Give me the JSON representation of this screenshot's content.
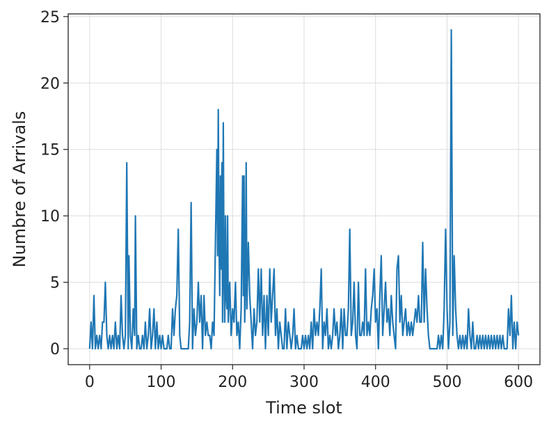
{
  "chart_data": {
    "type": "line",
    "title": "",
    "xlabel": "Time slot",
    "ylabel": "Numbre of Arrivals",
    "xlim": [
      -30,
      630
    ],
    "ylim": [
      -1.2,
      25.2
    ],
    "xticks": [
      0,
      100,
      200,
      300,
      400,
      500,
      600
    ],
    "yticks": [
      0,
      5,
      10,
      15,
      20,
      25
    ],
    "grid": true,
    "legend": "none",
    "line_color": "#1f77b4",
    "series": [
      {
        "points": [
          [
            0,
            0
          ],
          [
            2,
            2
          ],
          [
            4,
            0
          ],
          [
            6,
            4
          ],
          [
            8,
            0
          ],
          [
            10,
            1
          ],
          [
            12,
            0
          ],
          [
            14,
            1
          ],
          [
            16,
            0
          ],
          [
            18,
            2
          ],
          [
            20,
            2
          ],
          [
            22,
            5
          ],
          [
            24,
            1
          ],
          [
            26,
            0
          ],
          [
            28,
            1
          ],
          [
            30,
            0
          ],
          [
            32,
            1
          ],
          [
            34,
            0
          ],
          [
            36,
            2
          ],
          [
            38,
            0
          ],
          [
            40,
            1
          ],
          [
            42,
            0
          ],
          [
            44,
            4
          ],
          [
            46,
            1
          ],
          [
            48,
            0
          ],
          [
            50,
            1
          ],
          [
            52,
            14
          ],
          [
            54,
            0
          ],
          [
            55,
            7
          ],
          [
            57,
            1
          ],
          [
            59,
            0
          ],
          [
            61,
            3
          ],
          [
            63,
            1
          ],
          [
            64,
            10
          ],
          [
            66,
            0
          ],
          [
            68,
            1
          ],
          [
            70,
            0
          ],
          [
            72,
            0
          ],
          [
            74,
            1
          ],
          [
            76,
            0
          ],
          [
            78,
            2
          ],
          [
            80,
            0
          ],
          [
            82,
            1
          ],
          [
            84,
            3
          ],
          [
            86,
            0
          ],
          [
            88,
            1
          ],
          [
            90,
            3
          ],
          [
            92,
            0
          ],
          [
            94,
            2
          ],
          [
            96,
            0
          ],
          [
            98,
            1
          ],
          [
            100,
            0
          ],
          [
            102,
            1
          ],
          [
            104,
            0
          ],
          [
            106,
            0
          ],
          [
            108,
            0
          ],
          [
            110,
            1
          ],
          [
            112,
            0
          ],
          [
            114,
            0
          ],
          [
            116,
            3
          ],
          [
            118,
            1
          ],
          [
            120,
            3
          ],
          [
            122,
            4
          ],
          [
            124,
            9
          ],
          [
            126,
            1
          ],
          [
            128,
            0
          ],
          [
            130,
            0
          ],
          [
            134,
            0
          ],
          [
            138,
            0
          ],
          [
            140,
            2
          ],
          [
            142,
            11
          ],
          [
            144,
            0
          ],
          [
            146,
            3
          ],
          [
            148,
            1
          ],
          [
            150,
            2
          ],
          [
            152,
            5
          ],
          [
            154,
            2
          ],
          [
            156,
            4
          ],
          [
            158,
            0
          ],
          [
            160,
            4
          ],
          [
            162,
            1
          ],
          [
            164,
            2
          ],
          [
            166,
            1
          ],
          [
            168,
            1
          ],
          [
            170,
            0
          ],
          [
            172,
            2
          ],
          [
            174,
            1
          ],
          [
            176,
            8
          ],
          [
            178,
            15
          ],
          [
            179,
            7
          ],
          [
            180,
            18
          ],
          [
            181,
            8
          ],
          [
            182,
            4
          ],
          [
            183,
            13
          ],
          [
            184,
            6
          ],
          [
            185,
            14
          ],
          [
            186,
            2
          ],
          [
            187,
            17
          ],
          [
            188,
            6
          ],
          [
            189,
            2
          ],
          [
            190,
            10
          ],
          [
            191,
            4
          ],
          [
            192,
            3
          ],
          [
            193,
            10
          ],
          [
            194,
            2
          ],
          [
            196,
            5
          ],
          [
            198,
            1
          ],
          [
            200,
            3
          ],
          [
            202,
            2
          ],
          [
            204,
            5
          ],
          [
            206,
            1
          ],
          [
            208,
            2
          ],
          [
            210,
            0
          ],
          [
            212,
            3
          ],
          [
            214,
            13
          ],
          [
            215,
            4
          ],
          [
            216,
            13
          ],
          [
            217,
            2
          ],
          [
            218,
            5
          ],
          [
            219,
            14
          ],
          [
            220,
            3
          ],
          [
            222,
            8
          ],
          [
            224,
            4
          ],
          [
            226,
            2
          ],
          [
            228,
            0
          ],
          [
            230,
            3
          ],
          [
            232,
            1
          ],
          [
            234,
            2
          ],
          [
            236,
            6
          ],
          [
            238,
            2
          ],
          [
            240,
            6
          ],
          [
            242,
            1
          ],
          [
            244,
            4
          ],
          [
            246,
            0
          ],
          [
            248,
            4
          ],
          [
            250,
            1
          ],
          [
            252,
            6
          ],
          [
            254,
            2
          ],
          [
            256,
            4
          ],
          [
            258,
            6
          ],
          [
            260,
            1
          ],
          [
            262,
            3
          ],
          [
            264,
            0
          ],
          [
            266,
            2
          ],
          [
            268,
            1
          ],
          [
            270,
            0
          ],
          [
            272,
            0
          ],
          [
            274,
            3
          ],
          [
            276,
            0
          ],
          [
            278,
            2
          ],
          [
            280,
            1
          ],
          [
            282,
            0
          ],
          [
            284,
            1
          ],
          [
            286,
            3
          ],
          [
            288,
            0
          ],
          [
            290,
            1
          ],
          [
            292,
            0
          ],
          [
            294,
            0
          ],
          [
            296,
            0
          ],
          [
            298,
            1
          ],
          [
            300,
            0
          ],
          [
            302,
            1
          ],
          [
            304,
            0
          ],
          [
            306,
            1
          ],
          [
            308,
            0
          ],
          [
            310,
            2
          ],
          [
            312,
            0
          ],
          [
            314,
            3
          ],
          [
            316,
            1
          ],
          [
            318,
            2
          ],
          [
            320,
            1
          ],
          [
            322,
            3
          ],
          [
            324,
            6
          ],
          [
            326,
            0
          ],
          [
            328,
            2
          ],
          [
            330,
            1
          ],
          [
            332,
            3
          ],
          [
            334,
            0
          ],
          [
            336,
            1
          ],
          [
            338,
            0
          ],
          [
            340,
            1
          ],
          [
            342,
            3
          ],
          [
            344,
            1
          ],
          [
            346,
            2
          ],
          [
            348,
            0
          ],
          [
            350,
            1
          ],
          [
            352,
            3
          ],
          [
            354,
            0
          ],
          [
            356,
            3
          ],
          [
            358,
            1
          ],
          [
            360,
            1
          ],
          [
            362,
            3
          ],
          [
            364,
            9
          ],
          [
            366,
            1
          ],
          [
            368,
            2
          ],
          [
            370,
            5
          ],
          [
            372,
            1
          ],
          [
            374,
            0
          ],
          [
            376,
            5
          ],
          [
            378,
            1
          ],
          [
            380,
            1
          ],
          [
            382,
            2
          ],
          [
            384,
            1
          ],
          [
            386,
            6
          ],
          [
            388,
            1
          ],
          [
            390,
            2
          ],
          [
            392,
            1
          ],
          [
            394,
            3
          ],
          [
            396,
            4
          ],
          [
            398,
            6
          ],
          [
            400,
            2
          ],
          [
            402,
            3
          ],
          [
            404,
            0
          ],
          [
            406,
            4
          ],
          [
            408,
            7
          ],
          [
            410,
            1
          ],
          [
            412,
            3
          ],
          [
            414,
            5
          ],
          [
            416,
            2
          ],
          [
            418,
            3
          ],
          [
            420,
            1
          ],
          [
            422,
            4
          ],
          [
            424,
            2
          ],
          [
            426,
            1
          ],
          [
            428,
            0
          ],
          [
            430,
            6
          ],
          [
            432,
            7
          ],
          [
            434,
            2
          ],
          [
            436,
            4
          ],
          [
            438,
            1
          ],
          [
            440,
            2
          ],
          [
            442,
            3
          ],
          [
            444,
            1
          ],
          [
            446,
            2
          ],
          [
            448,
            1
          ],
          [
            450,
            2
          ],
          [
            452,
            1
          ],
          [
            454,
            2
          ],
          [
            456,
            3
          ],
          [
            458,
            2
          ],
          [
            460,
            4
          ],
          [
            462,
            2
          ],
          [
            464,
            2
          ],
          [
            466,
            8
          ],
          [
            468,
            2
          ],
          [
            470,
            6
          ],
          [
            472,
            3
          ],
          [
            474,
            1
          ],
          [
            476,
            0
          ],
          [
            478,
            0
          ],
          [
            480,
            0
          ],
          [
            482,
            0
          ],
          [
            484,
            0
          ],
          [
            486,
            0
          ],
          [
            488,
            1
          ],
          [
            490,
            0
          ],
          [
            492,
            1
          ],
          [
            494,
            0
          ],
          [
            496,
            3
          ],
          [
            498,
            9
          ],
          [
            500,
            3
          ],
          [
            502,
            0
          ],
          [
            504,
            2
          ],
          [
            506,
            24
          ],
          [
            508,
            1
          ],
          [
            510,
            7
          ],
          [
            512,
            3
          ],
          [
            514,
            1
          ],
          [
            516,
            0
          ],
          [
            518,
            1
          ],
          [
            520,
            0
          ],
          [
            522,
            1
          ],
          [
            524,
            0
          ],
          [
            526,
            1
          ],
          [
            528,
            0
          ],
          [
            530,
            3
          ],
          [
            532,
            1
          ],
          [
            534,
            0
          ],
          [
            536,
            2
          ],
          [
            538,
            0
          ],
          [
            540,
            0
          ],
          [
            542,
            1
          ],
          [
            544,
            0
          ],
          [
            546,
            1
          ],
          [
            548,
            0
          ],
          [
            550,
            1
          ],
          [
            552,
            0
          ],
          [
            554,
            1
          ],
          [
            556,
            0
          ],
          [
            558,
            1
          ],
          [
            560,
            0
          ],
          [
            562,
            1
          ],
          [
            564,
            0
          ],
          [
            566,
            1
          ],
          [
            568,
            0
          ],
          [
            570,
            1
          ],
          [
            572,
            0
          ],
          [
            574,
            1
          ],
          [
            576,
            0
          ],
          [
            578,
            1
          ],
          [
            580,
            0
          ],
          [
            582,
            0
          ],
          [
            584,
            0
          ],
          [
            586,
            3
          ],
          [
            588,
            1
          ],
          [
            590,
            4
          ],
          [
            592,
            0
          ],
          [
            594,
            2
          ],
          [
            596,
            0
          ],
          [
            598,
            2
          ],
          [
            600,
            1
          ]
        ]
      }
    ]
  }
}
